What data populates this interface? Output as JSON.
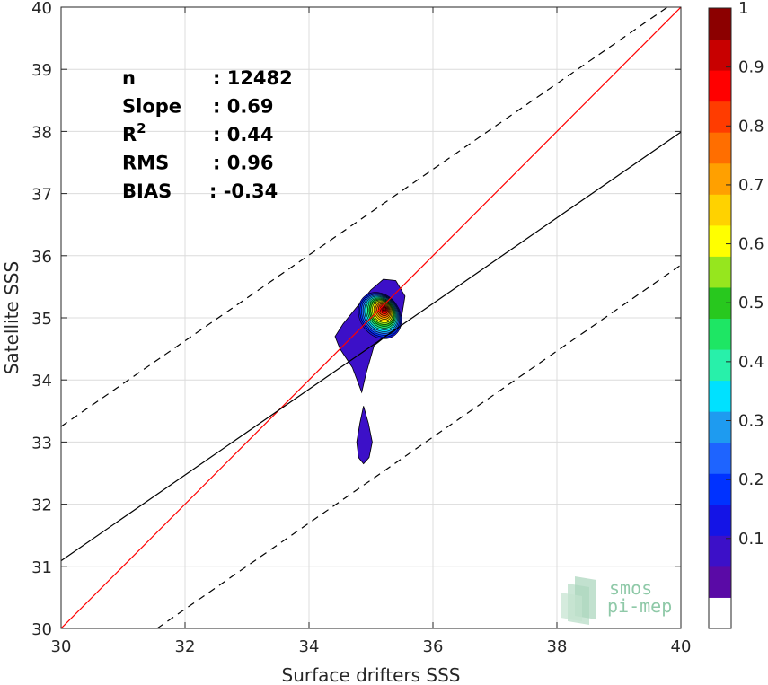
{
  "chart_data": {
    "type": "contour",
    "xlabel": "Surface drifters SSS",
    "ylabel": "Satellite SSS",
    "xlim": [
      30,
      40
    ],
    "ylim": [
      30,
      40
    ],
    "xticks": [
      "30",
      "32",
      "34",
      "36",
      "38",
      "40"
    ],
    "yticks": [
      "30",
      "31",
      "32",
      "33",
      "34",
      "35",
      "36",
      "37",
      "38",
      "39",
      "40"
    ],
    "grid": true,
    "stats": [
      {
        "label": "n",
        "sup": "",
        "value": ": 12482"
      },
      {
        "label": "Slope",
        "sup": "",
        "value": ": 0.69"
      },
      {
        "label": "R",
        "sup": "2",
        "value": ": 0.44"
      },
      {
        "label": "RMS",
        "sup": "",
        "value": ": 0.96"
      },
      {
        "label": "BIAS",
        "sup": "",
        "value": ": -0.34"
      }
    ],
    "lines": {
      "identity": {
        "x": [
          30,
          40
        ],
        "y": [
          30,
          40
        ],
        "color": "#ff0000"
      },
      "regression": {
        "x": [
          30,
          40
        ],
        "y": [
          31.09,
          37.99
        ],
        "color": "#000000"
      },
      "upper_bound": {
        "x": [
          30,
          40
        ],
        "y": [
          33.25,
          40.15
        ],
        "color": "#000000",
        "style": "dashed"
      },
      "lower_bound": {
        "x": [
          31.55,
          40
        ],
        "y": [
          30,
          35.85
        ],
        "color": "#000000",
        "style": "dashed"
      }
    },
    "density_peak": {
      "x": 35.22,
      "y": 35.15
    },
    "colorbar": {
      "ticks": [
        "0.1",
        "0.2",
        "0.3",
        "0.4",
        "0.5",
        "0.6",
        "0.7",
        "0.8",
        "0.9",
        "1"
      ],
      "colors": [
        "#ffffff",
        "#5a0aa6",
        "#3c10c8",
        "#1414e6",
        "#0032ff",
        "#1e64ff",
        "#1e9bf0",
        "#00e1ff",
        "#28f0aa",
        "#1ee664",
        "#28c81e",
        "#96e61e",
        "#ffff00",
        "#ffd200",
        "#ffa000",
        "#ff6e00",
        "#ff3c00",
        "#ff0000",
        "#c80000",
        "#8c0000"
      ]
    }
  },
  "logo": {
    "line1": "smos",
    "line2": "pi-mep"
  }
}
